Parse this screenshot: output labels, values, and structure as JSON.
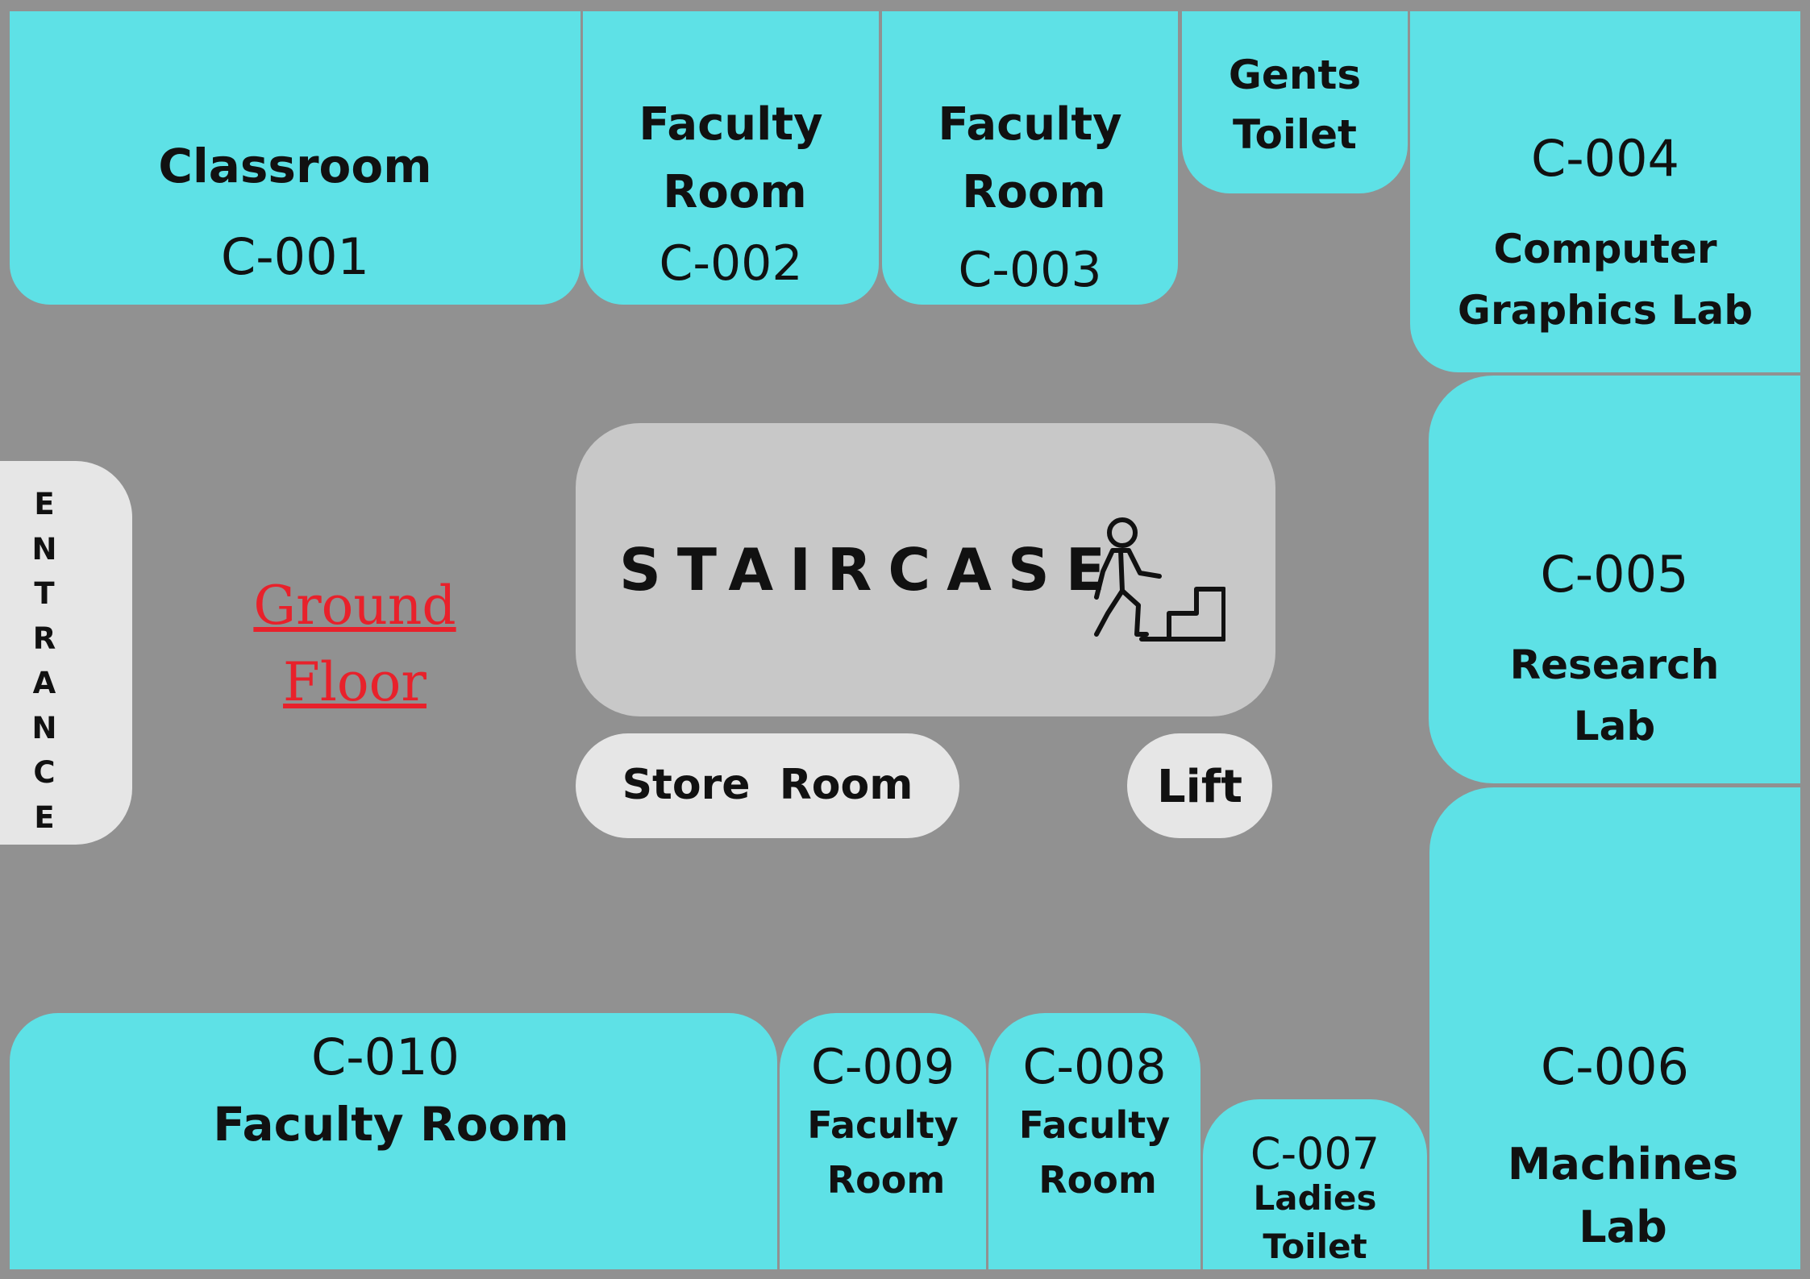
{
  "title": "Ground Floor",
  "colors": {
    "room": "#5ee1e6",
    "background": "#919191",
    "core": "#c8c8c8",
    "pill": "#e6e6e6",
    "title": "#e8212b"
  },
  "entrance": [
    "E",
    "N",
    "T",
    "R",
    "A",
    "N",
    "C",
    "E"
  ],
  "staircase": {
    "label": "STAIRCASE",
    "icon": "stairs-climbing-person-icon"
  },
  "store_room": "Store  Room",
  "lift": "Lift",
  "rooms": {
    "c001": {
      "name": "Classroom",
      "code": "C-001"
    },
    "c002": {
      "name1": "Faculty",
      "name2": "Room",
      "code": "C-002"
    },
    "c003": {
      "name1": "Faculty",
      "name2": "Room",
      "code": "C-003"
    },
    "gents": {
      "name1": "Gents",
      "name2": "Toilet"
    },
    "c004": {
      "code": "C-004",
      "name1": "Computer",
      "name2": "Graphics Lab"
    },
    "c005": {
      "code": "C-005",
      "name1": "Research",
      "name2": "Lab"
    },
    "c006": {
      "code": "C-006",
      "name1": "Machines",
      "name2": "Lab"
    },
    "c007": {
      "code": "C-007",
      "name1": "Ladies",
      "name2": "Toilet"
    },
    "c008": {
      "code": "C-008",
      "name1": "Faculty",
      "name2": "Room"
    },
    "c009": {
      "code": "C-009",
      "name1": "Faculty",
      "name2": "Room"
    },
    "c010": {
      "code": "C-010",
      "name": "Faculty Room"
    }
  }
}
